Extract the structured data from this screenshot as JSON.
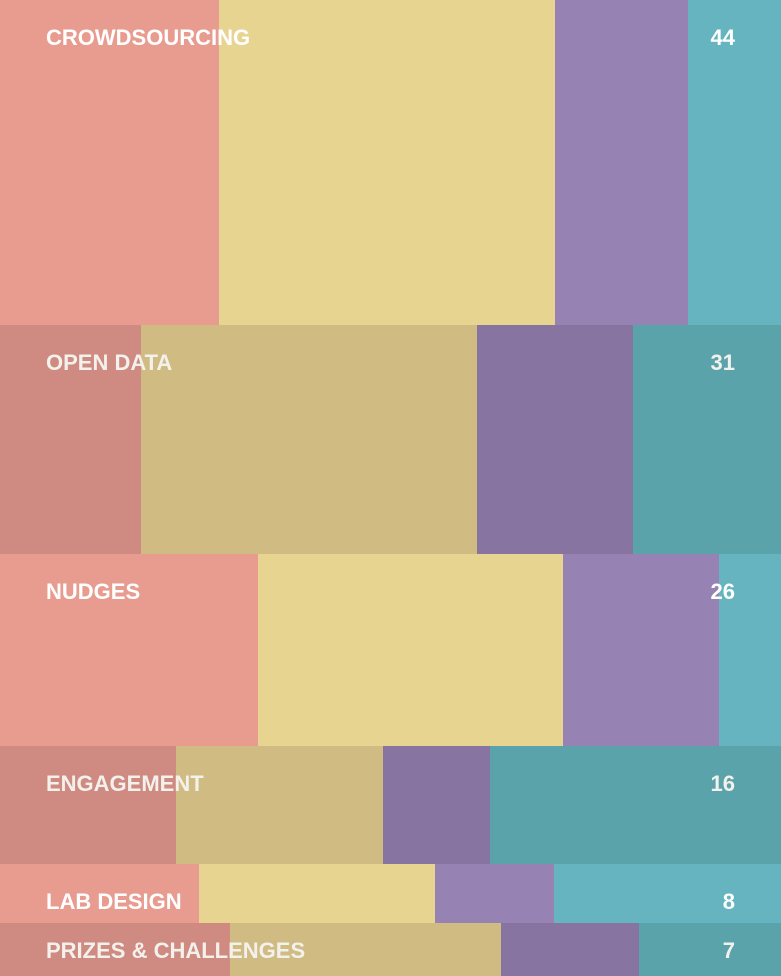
{
  "chart_data": {
    "type": "bar",
    "subtype": "marimekko",
    "series_colors": [
      "#e89c90",
      "#e8d491",
      "#9683b4",
      "#66b4bf"
    ],
    "series_colors_alt": [
      "#cf8a81",
      "#d0bb82",
      "#8874a1",
      "#5ba3ab"
    ],
    "categories": [
      {
        "label": "CROWDSOURCING",
        "total": 44,
        "shares": [
          0.28,
          0.43,
          0.17,
          0.12
        ]
      },
      {
        "label": "OPEN DATA",
        "total": 31,
        "shares": [
          0.18,
          0.43,
          0.2,
          0.19
        ]
      },
      {
        "label": "NUDGES",
        "total": 26,
        "shares": [
          0.33,
          0.39,
          0.2,
          0.08
        ]
      },
      {
        "label": "ENGAGEMENT",
        "total": 16,
        "shares": [
          0.225,
          0.265,
          0.137,
          0.373
        ]
      },
      {
        "label": "LAB DESIGN",
        "total": 8,
        "shares": [
          0.255,
          0.302,
          0.153,
          0.29
        ]
      },
      {
        "label": "PRIZES & CHALLENGES",
        "total": 7,
        "shares": [
          0.294,
          0.347,
          0.177,
          0.182
        ]
      }
    ]
  }
}
